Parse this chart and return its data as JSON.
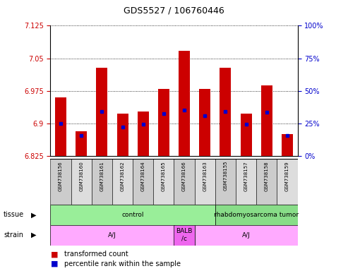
{
  "title": "GDS5527 / 106760446",
  "samples": [
    "GSM738156",
    "GSM738160",
    "GSM738161",
    "GSM738162",
    "GSM738164",
    "GSM738165",
    "GSM738166",
    "GSM738163",
    "GSM738155",
    "GSM738157",
    "GSM738158",
    "GSM738159"
  ],
  "bar_tops": [
    6.96,
    6.882,
    7.028,
    6.923,
    6.928,
    6.98,
    7.068,
    6.98,
    7.028,
    6.923,
    6.988,
    6.875
  ],
  "bar_bottoms": [
    6.825,
    6.825,
    6.825,
    6.825,
    6.825,
    6.825,
    6.825,
    6.825,
    6.825,
    6.825,
    6.825,
    6.825
  ],
  "blue_markers": [
    6.9,
    6.872,
    6.928,
    6.892,
    6.898,
    6.923,
    6.93,
    6.918,
    6.928,
    6.898,
    6.925,
    6.872
  ],
  "ylim": [
    6.825,
    7.125
  ],
  "yticks": [
    6.825,
    6.9,
    6.975,
    7.05,
    7.125
  ],
  "right_ytick_pct": [
    0,
    25,
    50,
    75,
    100
  ],
  "bar_color": "#cc0000",
  "blue_color": "#0000cc",
  "bar_width": 0.55,
  "tissue_groups": [
    {
      "label": "control",
      "start": 0,
      "end": 8,
      "color": "#99ee99"
    },
    {
      "label": "rhabdomyosarcoma tumor",
      "start": 8,
      "end": 12,
      "color": "#88dd88"
    }
  ],
  "strain_groups": [
    {
      "label": "A/J",
      "start": 0,
      "end": 6,
      "color": "#ffaaff"
    },
    {
      "label": "BALB\n/c",
      "start": 6,
      "end": 7,
      "color": "#ee66ee"
    },
    {
      "label": "A/J",
      "start": 7,
      "end": 12,
      "color": "#ffaaff"
    }
  ],
  "legend_red_label": "transformed count",
  "legend_blue_label": "percentile rank within the sample",
  "bg_color": "#ffffff",
  "tick_color_left": "#cc0000",
  "tick_color_right": "#0000cc",
  "sample_box_color": "#dddddd",
  "n_samples": 12
}
